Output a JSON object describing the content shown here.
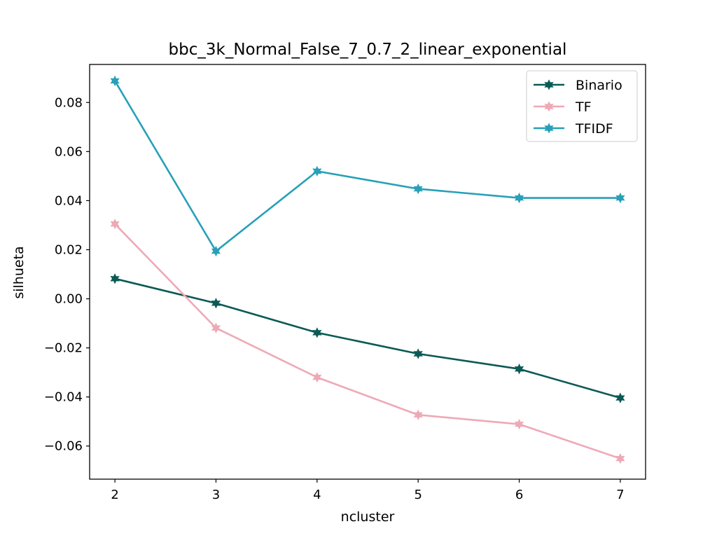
{
  "chart_data": {
    "type": "line",
    "title": "bbc_3k_Normal_False_7_0.7_2_linear_exponential",
    "xlabel": "ncluster",
    "ylabel": "silhueta",
    "x": [
      2,
      3,
      4,
      5,
      6,
      7
    ],
    "xlim": [
      1.75,
      7.25
    ],
    "ylim": [
      -0.0735,
      0.0955
    ],
    "xticks": [
      2,
      3,
      4,
      5,
      6,
      7
    ],
    "yticks": [
      -0.06,
      -0.04,
      -0.02,
      0.0,
      0.02,
      0.04,
      0.06,
      0.08
    ],
    "ytick_labels": [
      "−0.06",
      "−0.04",
      "−0.02",
      "0.00",
      "0.02",
      "0.04",
      "0.06",
      "0.08"
    ],
    "grid": false,
    "legend_position": "top-right",
    "marker": "star",
    "series": [
      {
        "name": "Binario",
        "color": "#0b5a55",
        "values": [
          0.0082,
          -0.0018,
          -0.0138,
          -0.0224,
          -0.0286,
          -0.0404
        ]
      },
      {
        "name": "TF",
        "color": "#eea9b6",
        "values": [
          0.0305,
          -0.0119,
          -0.032,
          -0.0473,
          -0.0511,
          -0.0651
        ]
      },
      {
        "name": "TFIDF",
        "color": "#27a0b8",
        "values": [
          0.0888,
          0.0194,
          0.052,
          0.0448,
          0.0411,
          0.0411
        ]
      }
    ]
  }
}
